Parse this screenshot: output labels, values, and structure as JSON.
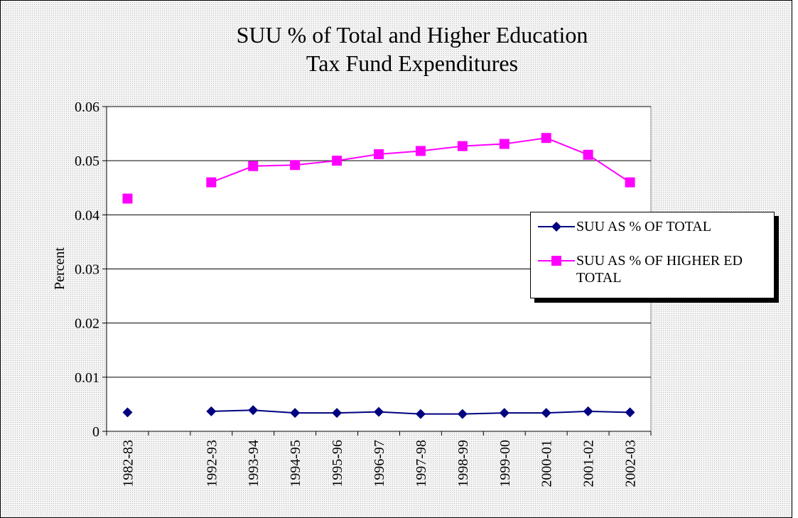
{
  "chart_data": {
    "type": "line",
    "title": [
      "SUU % of Total and Higher Education",
      "Tax Fund Expenditures"
    ],
    "y_label": "Percent",
    "categories": [
      "1982-83",
      null,
      "1992-93",
      "1993-94",
      "1994-95",
      "1995-96",
      "1996-97",
      "1997-98",
      "1998-99",
      "1999-00",
      "2000-01",
      "2001-02",
      "2002-03"
    ],
    "series": [
      {
        "name": "SUU AS % OF TOTAL",
        "color": "#000080",
        "marker": "diamond",
        "values": [
          0.0035,
          null,
          0.0037,
          0.0039,
          0.0034,
          0.0034,
          0.0036,
          0.0032,
          0.0032,
          0.0034,
          0.0034,
          0.0037,
          0.0035
        ]
      },
      {
        "name": "SUU AS % OF HIGHER ED TOTAL",
        "color": "#ff00ff",
        "marker": "square",
        "values": [
          0.043,
          null,
          0.046,
          0.049,
          0.0492,
          0.05,
          0.0512,
          0.0518,
          0.0527,
          0.0531,
          0.0542,
          0.0511,
          0.046
        ]
      }
    ],
    "ylim": [
      0,
      0.06
    ],
    "yticks": [
      0,
      0.01,
      0.02,
      0.03,
      0.04,
      0.05,
      0.06
    ],
    "grid": true,
    "legend": "right"
  }
}
